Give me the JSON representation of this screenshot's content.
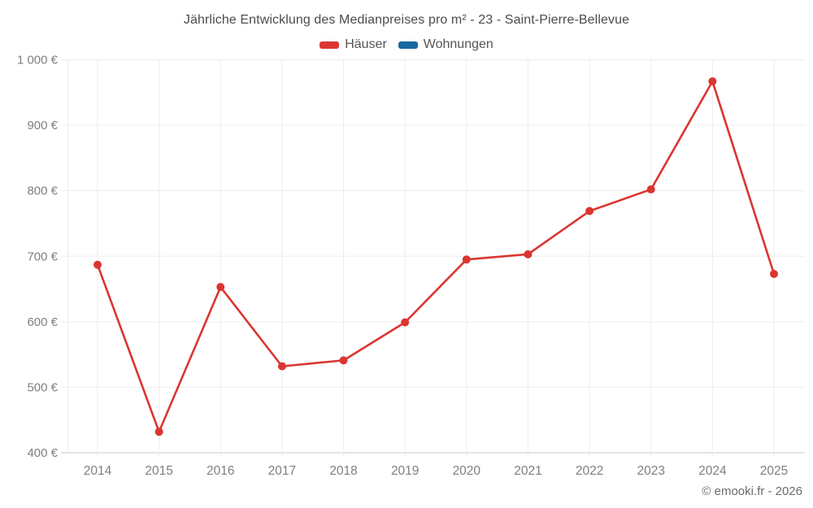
{
  "footer": {
    "copyright": "© emooki.fr - 2026"
  },
  "chart_data": {
    "type": "line",
    "title": "Jährliche Entwicklung des Medianpreises pro m² - 23 - Saint-Pierre-Bellevue",
    "xlabel": "",
    "ylabel": "",
    "x": [
      2014,
      2015,
      2016,
      2017,
      2018,
      2019,
      2020,
      2021,
      2022,
      2023,
      2024,
      2025
    ],
    "series": [
      {
        "name": "Häuser",
        "color": "#db3531",
        "values": [
          687,
          432,
          653,
          532,
          541,
          599,
          695,
          703,
          769,
          802,
          967,
          673
        ]
      },
      {
        "name": "Wohnungen",
        "color": "#17699e",
        "values": []
      }
    ],
    "ylim": [
      400,
      1000
    ],
    "y_ticks": [
      {
        "value": 400,
        "label": "400 €"
      },
      {
        "value": 500,
        "label": "500 €"
      },
      {
        "value": 600,
        "label": "600 €"
      },
      {
        "value": 700,
        "label": "700 €"
      },
      {
        "value": 800,
        "label": "800 €"
      },
      {
        "value": 900,
        "label": "900 €"
      },
      {
        "value": 1000,
        "label": "1 000 €"
      }
    ],
    "grid": true,
    "legend_position": "top",
    "colors": {
      "grid": "#ededed",
      "baseline": "#c9c9c9",
      "tick_text": "#7f7f7f",
      "point_fill": "#db3531"
    }
  }
}
